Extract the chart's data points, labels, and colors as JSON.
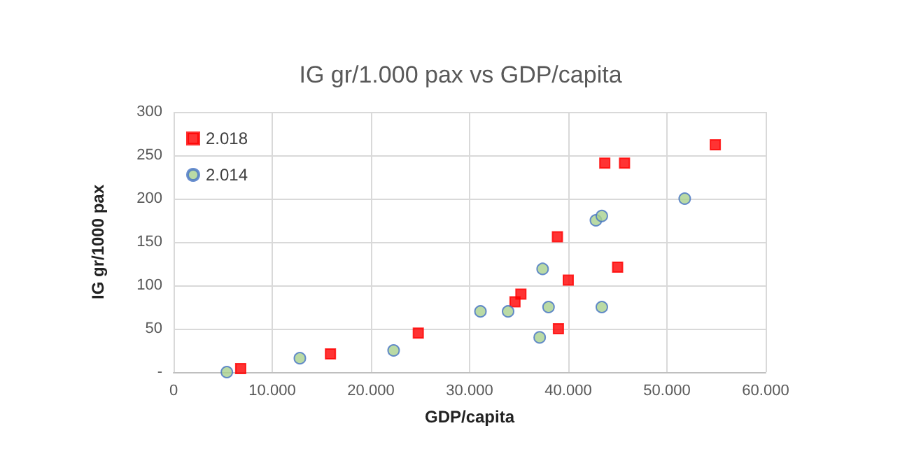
{
  "chart_data": {
    "type": "scatter",
    "title": "IG gr/1.000 pax vs GDP/capita",
    "xlabel": "GDP/capita",
    "ylabel": "IG gr/1000 pax",
    "series": [
      {
        "name": "2.018",
        "color": "#ff0000",
        "marker": "square",
        "x": [
          6800,
          15900,
          24800,
          34600,
          35200,
          38900,
          39000,
          40000,
          43700,
          45700,
          45000,
          54900
        ],
        "values": [
          4,
          21,
          45,
          81,
          90,
          156,
          50,
          106,
          241,
          241,
          121,
          262
        ]
      },
      {
        "name": "2.014",
        "color": "#a9d18e",
        "marker": "circle",
        "x": [
          5400,
          12800,
          22300,
          31100,
          33900,
          37400,
          37100,
          38000,
          42800,
          43400,
          43400,
          51800
        ],
        "values": [
          0,
          16,
          25,
          70,
          70,
          119,
          40,
          75,
          175,
          180,
          75,
          200
        ]
      }
    ],
    "xlim": [
      0,
      60000
    ],
    "xticks": [
      0,
      {
        "value": 10000,
        "label": "10.000"
      },
      {
        "value": 20000,
        "label": "20.000"
      },
      {
        "value": 30000,
        "label": "30.000"
      },
      {
        "value": 40000,
        "label": "40.000"
      },
      {
        "value": 50000,
        "label": "50.000"
      },
      {
        "value": 60000,
        "label": "60.000"
      }
    ],
    "ylim": [
      0,
      300
    ],
    "yticks": [
      {
        "value": 0,
        "label": "-"
      },
      50,
      100,
      150,
      200,
      250,
      300
    ],
    "grid": true,
    "legend": "top left"
  }
}
